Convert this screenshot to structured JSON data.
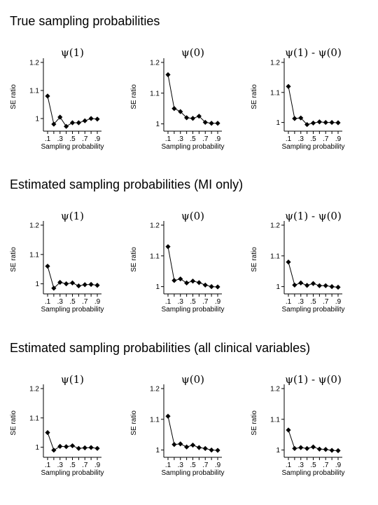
{
  "section_titles": [
    "True sampling probabilities",
    "Estimated sampling probabilities (MI only)",
    "Estimated sampling probabilities (all clinical variables)"
  ],
  "panel_titles": [
    "ψ(1)",
    "ψ(0)",
    "ψ(1) - ψ(0)"
  ],
  "chart_data": [
    {
      "type": "line",
      "row": 0,
      "col": 0,
      "title": "ψ(1)",
      "xlabel": "Sampling probability",
      "ylabel": "SE ratio",
      "x": [
        0.1,
        0.2,
        0.3,
        0.4,
        0.5,
        0.6,
        0.7,
        0.8,
        0.9
      ],
      "y": [
        1.08,
        0.98,
        1.005,
        0.972,
        0.985,
        0.985,
        0.992,
        1.0,
        0.998
      ],
      "xticks": [
        ".1",
        ".3",
        ".5",
        ".7",
        ".9"
      ],
      "yticks": [
        "1",
        "1.1",
        "1.2"
      ],
      "ylim": [
        0.97,
        1.2
      ],
      "marker": "diamond"
    },
    {
      "type": "line",
      "row": 0,
      "col": 1,
      "title": "ψ(0)",
      "xlabel": "Sampling probability",
      "ylabel": "SE ratio",
      "x": [
        0.1,
        0.2,
        0.3,
        0.4,
        0.5,
        0.6,
        0.7,
        0.8,
        0.9
      ],
      "y": [
        1.16,
        1.05,
        1.04,
        1.02,
        1.018,
        1.025,
        1.005,
        1.002,
        1.002
      ],
      "xticks": [
        ".1",
        ".3",
        ".5",
        ".7",
        ".9"
      ],
      "yticks": [
        "1",
        "1.1",
        "1.2"
      ],
      "ylim": [
        0.99,
        1.2
      ],
      "marker": "diamond"
    },
    {
      "type": "line",
      "row": 0,
      "col": 2,
      "title": "ψ(1) - ψ(0)",
      "xlabel": "Sampling probability",
      "ylabel": "SE ratio",
      "x": [
        0.1,
        0.2,
        0.3,
        0.4,
        0.5,
        0.6,
        0.7,
        0.8,
        0.9
      ],
      "y": [
        1.12,
        1.013,
        1.015,
        0.993,
        0.998,
        1.002,
        1.0,
        1.0,
        0.999
      ],
      "xticks": [
        ".1",
        ".3",
        ".5",
        ".7",
        ".9"
      ],
      "yticks": [
        "1",
        "1.1",
        "1.2"
      ],
      "ylim": [
        0.985,
        1.2
      ],
      "marker": "diamond"
    },
    {
      "type": "line",
      "row": 1,
      "col": 0,
      "title": "ψ(1)",
      "xlabel": "Sampling probability",
      "ylabel": "SE ratio",
      "x": [
        0.1,
        0.2,
        0.3,
        0.4,
        0.5,
        0.6,
        0.7,
        0.8,
        0.9
      ],
      "y": [
        1.06,
        0.985,
        1.005,
        1.0,
        1.003,
        0.993,
        0.997,
        0.998,
        0.995
      ],
      "xticks": [
        ".1",
        ".3",
        ".5",
        ".7",
        ".9"
      ],
      "yticks": [
        "1",
        "1.1",
        "1.2"
      ],
      "ylim": [
        0.98,
        1.2
      ],
      "marker": "diamond"
    },
    {
      "type": "line",
      "row": 1,
      "col": 1,
      "title": "ψ(0)",
      "xlabel": "Sampling probability",
      "ylabel": "SE ratio",
      "x": [
        0.1,
        0.2,
        0.3,
        0.4,
        0.5,
        0.6,
        0.7,
        0.8,
        0.9
      ],
      "y": [
        1.13,
        1.02,
        1.025,
        1.012,
        1.018,
        1.013,
        1.005,
        1.0,
        0.999
      ],
      "xticks": [
        ".1",
        ".3",
        ".5",
        ".7",
        ".9"
      ],
      "yticks": [
        "1",
        "1.1",
        "1.2"
      ],
      "ylim": [
        0.99,
        1.2
      ],
      "marker": "diamond"
    },
    {
      "type": "line",
      "row": 1,
      "col": 2,
      "title": "ψ(1) - ψ(0)",
      "xlabel": "Sampling probability",
      "ylabel": "SE ratio",
      "x": [
        0.1,
        0.2,
        0.3,
        0.4,
        0.5,
        0.6,
        0.7,
        0.8,
        0.9
      ],
      "y": [
        1.08,
        1.005,
        1.012,
        1.004,
        1.01,
        1.003,
        1.003,
        1.0,
        0.998
      ],
      "xticks": [
        ".1",
        ".3",
        ".5",
        ".7",
        ".9"
      ],
      "yticks": [
        "1",
        "1.1",
        "1.2"
      ],
      "ylim": [
        0.99,
        1.2
      ],
      "marker": "diamond"
    },
    {
      "type": "line",
      "row": 2,
      "col": 0,
      "title": "ψ(1)",
      "xlabel": "Sampling probability",
      "ylabel": "SE ratio",
      "x": [
        0.1,
        0.2,
        0.3,
        0.4,
        0.5,
        0.6,
        0.7,
        0.8,
        0.9
      ],
      "y": [
        1.05,
        0.99,
        1.003,
        1.002,
        1.005,
        0.996,
        0.998,
        0.999,
        0.996
      ],
      "xticks": [
        ".1",
        ".3",
        ".5",
        ".7",
        ".9"
      ],
      "yticks": [
        "1",
        "1.1",
        "1.2"
      ],
      "ylim": [
        0.98,
        1.2
      ],
      "marker": "diamond"
    },
    {
      "type": "line",
      "row": 2,
      "col": 1,
      "title": "ψ(0)",
      "xlabel": "Sampling probability",
      "ylabel": "SE ratio",
      "x": [
        0.1,
        0.2,
        0.3,
        0.4,
        0.5,
        0.6,
        0.7,
        0.8,
        0.9
      ],
      "y": [
        1.11,
        1.018,
        1.02,
        1.01,
        1.016,
        1.008,
        1.005,
        1.0,
        0.999
      ],
      "xticks": [
        ".1",
        ".3",
        ".5",
        ".7",
        ".9"
      ],
      "yticks": [
        "1",
        "1.1",
        "1.2"
      ],
      "ylim": [
        0.99,
        1.2
      ],
      "marker": "diamond"
    },
    {
      "type": "line",
      "row": 2,
      "col": 2,
      "title": "ψ(1) - ψ(0)",
      "xlabel": "Sampling probability",
      "ylabel": "SE ratio",
      "x": [
        0.1,
        0.2,
        0.3,
        0.4,
        0.5,
        0.6,
        0.7,
        0.8,
        0.9
      ],
      "y": [
        1.065,
        1.005,
        1.008,
        1.005,
        1.01,
        1.003,
        1.002,
        0.999,
        0.998
      ],
      "xticks": [
        ".1",
        ".3",
        ".5",
        ".7",
        ".9"
      ],
      "yticks": [
        "1",
        "1.1",
        "1.2"
      ],
      "ylim": [
        0.99,
        1.2
      ],
      "marker": "diamond"
    }
  ]
}
